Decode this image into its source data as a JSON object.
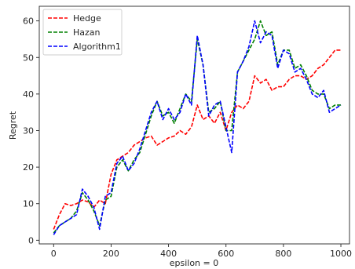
{
  "chart_data": {
    "type": "line",
    "title": "",
    "xlabel": "epsilon = 0",
    "ylabel": "Regret",
    "xlim": [
      -50,
      1030
    ],
    "ylim": [
      -1,
      64
    ],
    "xticks": [
      0,
      200,
      400,
      600,
      800,
      1000
    ],
    "yticks": [
      0,
      10,
      20,
      30,
      40,
      50,
      60
    ],
    "legend_position": "top-left",
    "grid": false,
    "series": [
      {
        "name": "Hedge",
        "color": "#ff0000",
        "style": "dashed",
        "x": [
          0,
          20,
          40,
          60,
          80,
          100,
          120,
          140,
          160,
          180,
          200,
          220,
          240,
          260,
          280,
          300,
          320,
          340,
          360,
          380,
          400,
          420,
          440,
          460,
          480,
          500,
          520,
          540,
          560,
          580,
          600,
          620,
          640,
          660,
          680,
          700,
          720,
          740,
          760,
          780,
          800,
          820,
          840,
          860,
          880,
          900,
          920,
          940,
          960,
          980,
          1000
        ],
        "values": [
          3,
          7,
          10,
          9.5,
          10,
          11,
          10.5,
          9,
          11,
          10,
          18,
          22,
          23,
          24,
          26,
          27,
          28,
          28.5,
          26,
          27,
          28,
          28.5,
          30,
          29,
          31,
          37,
          33,
          34,
          32,
          35,
          30,
          35,
          37,
          36,
          38,
          45,
          43,
          44,
          41,
          42,
          42,
          44,
          45,
          45,
          44,
          45,
          47,
          48,
          50,
          52,
          52
        ]
      },
      {
        "name": "Hazan",
        "color": "#008000",
        "style": "dashed",
        "x": [
          0,
          20,
          40,
          60,
          80,
          100,
          120,
          140,
          160,
          180,
          200,
          220,
          240,
          260,
          280,
          300,
          320,
          340,
          360,
          380,
          400,
          420,
          440,
          460,
          480,
          500,
          520,
          540,
          560,
          580,
          600,
          620,
          640,
          660,
          680,
          700,
          720,
          740,
          760,
          780,
          800,
          820,
          840,
          860,
          880,
          900,
          920,
          940,
          960,
          980,
          1000
        ],
        "values": [
          2,
          4,
          5,
          6,
          8,
          13,
          11,
          8,
          4,
          11,
          12,
          20,
          22,
          19,
          22,
          24,
          29,
          34,
          38,
          34,
          35,
          32,
          36,
          40,
          38,
          55,
          48,
          35,
          36,
          38,
          30,
          30,
          46,
          49,
          52,
          55,
          60,
          56,
          57,
          48,
          52,
          52,
          47,
          48,
          45,
          41,
          40,
          40,
          36,
          37,
          37
        ]
      },
      {
        "name": "Algorithm1",
        "color": "#0000ff",
        "style": "dashed",
        "x": [
          0,
          20,
          40,
          60,
          80,
          100,
          120,
          140,
          160,
          180,
          200,
          220,
          240,
          260,
          280,
          300,
          320,
          340,
          360,
          380,
          400,
          420,
          440,
          460,
          480,
          500,
          520,
          540,
          560,
          580,
          600,
          620,
          640,
          660,
          680,
          700,
          720,
          740,
          760,
          780,
          800,
          820,
          840,
          860,
          880,
          900,
          920,
          940,
          960,
          980,
          1000
        ],
        "values": [
          1.5,
          4,
          5,
          6,
          7,
          14,
          12,
          9,
          3,
          12,
          13,
          21,
          23,
          19,
          21,
          25,
          30,
          35,
          38,
          33,
          36,
          33,
          35,
          40,
          37,
          56,
          48,
          34,
          37,
          38,
          31,
          24,
          46,
          49,
          53,
          60,
          54,
          57,
          56,
          47,
          52,
          51,
          46,
          47,
          44,
          40,
          39,
          41,
          35,
          36,
          37
        ]
      }
    ]
  }
}
